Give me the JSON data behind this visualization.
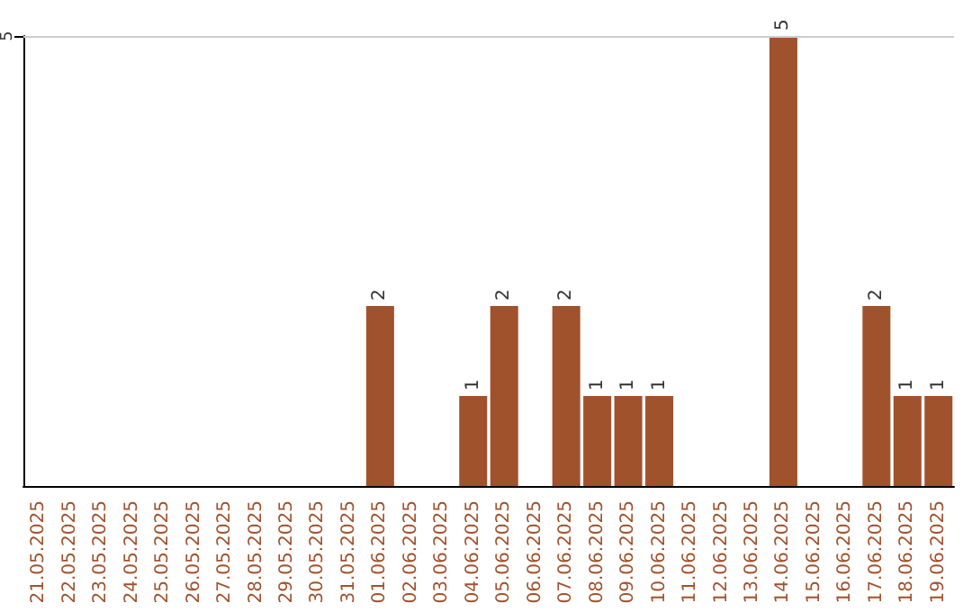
{
  "chart_data": {
    "type": "bar",
    "categories": [
      "21.05.2025",
      "22.05.2025",
      "23.05.2025",
      "24.05.2025",
      "25.05.2025",
      "26.05.2025",
      "27.05.2025",
      "28.05.2025",
      "29.05.2025",
      "30.05.2025",
      "31.05.2025",
      "01.06.2025",
      "02.06.2025",
      "03.06.2025",
      "04.06.2025",
      "05.06.2025",
      "06.06.2025",
      "07.06.2025",
      "08.06.2025",
      "09.06.2025",
      "10.06.2025",
      "11.06.2025",
      "12.06.2025",
      "13.06.2025",
      "14.06.2025",
      "15.06.2025",
      "16.06.2025",
      "17.06.2025",
      "18.06.2025",
      "19.06.2025"
    ],
    "values": [
      0,
      0,
      0,
      0,
      0,
      0,
      0,
      0,
      0,
      0,
      0,
      2,
      0,
      0,
      1,
      2,
      0,
      2,
      1,
      1,
      1,
      0,
      0,
      0,
      5,
      0,
      0,
      2,
      1,
      1
    ],
    "value_labels": [
      null,
      null,
      null,
      null,
      null,
      null,
      null,
      null,
      null,
      null,
      null,
      "2",
      null,
      null,
      "1",
      "2",
      null,
      "2",
      "1",
      "1",
      "1",
      null,
      null,
      null,
      "5",
      null,
      null,
      "2",
      "1",
      "1"
    ],
    "color": "#a0522d",
    "ylim": [
      0,
      5
    ],
    "yticks": [
      5
    ],
    "ref_lines": [
      {
        "axis": "y",
        "value": 5,
        "color": "#cccccc"
      }
    ]
  }
}
